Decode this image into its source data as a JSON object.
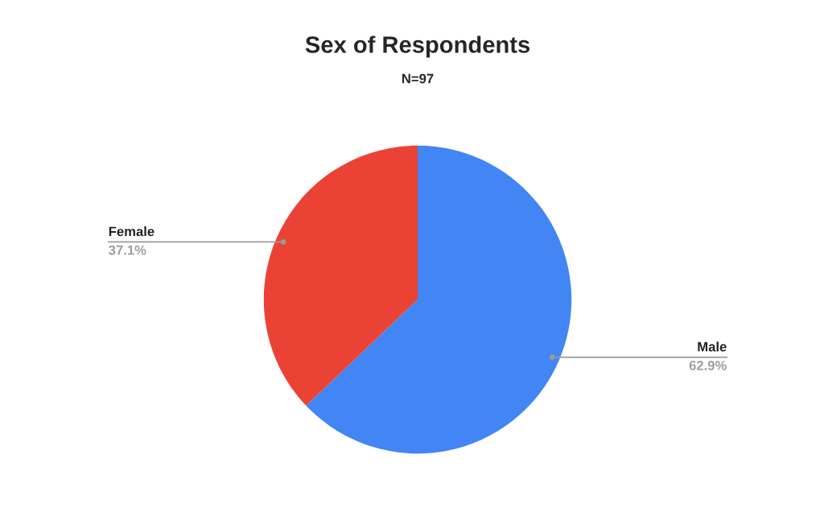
{
  "chart_data": {
    "type": "pie",
    "title": "Sex of Respondents",
    "subtitle": "N=97",
    "categories": [
      "Male",
      "Female"
    ],
    "values": [
      62.9,
      37.1
    ],
    "colors": [
      "#4285f4",
      "#ea4335"
    ],
    "value_labels": [
      "62.9%",
      "37.1%"
    ]
  }
}
